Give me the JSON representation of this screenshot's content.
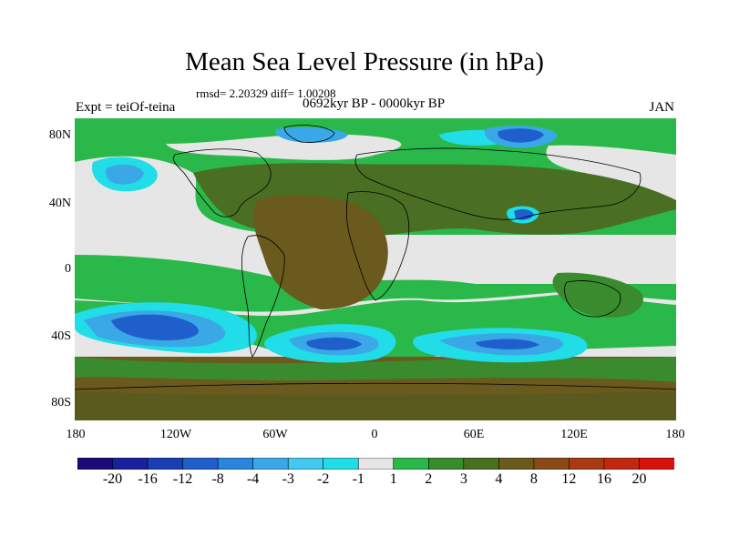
{
  "title": "Mean Sea Level Pressure (in hPa)",
  "stats_line": "rmsd= 2.20329 diff= 1.00208",
  "subtitle": "0692kyr BP - 0000kyr BP",
  "left_label": "Expt = teiOf-teina",
  "right_label": "JAN",
  "lat_labels": [
    "80N",
    "40N",
    "0",
    "40S",
    "80S"
  ],
  "lon_labels": [
    "180",
    "120W",
    "60W",
    "0",
    "60E",
    "120E",
    "180"
  ],
  "colorbar": {
    "labels": [
      "-20",
      "-16",
      "-12",
      "-8",
      "-4",
      "-3",
      "-2",
      "-1",
      "1",
      "2",
      "3",
      "4",
      "8",
      "12",
      "16",
      "20"
    ],
    "colors": [
      "#1a0a7a",
      "#1b1f9c",
      "#1a3fb4",
      "#1f5fcc",
      "#2a85dc",
      "#3aa8e6",
      "#43c8f0",
      "#20dde8",
      "#e6e6e6",
      "#2ab84a",
      "#3a8a2e",
      "#4a6e22",
      "#6a5a1e",
      "#8a4a18",
      "#a83a14",
      "#c02812",
      "#d8120c"
    ]
  }
}
